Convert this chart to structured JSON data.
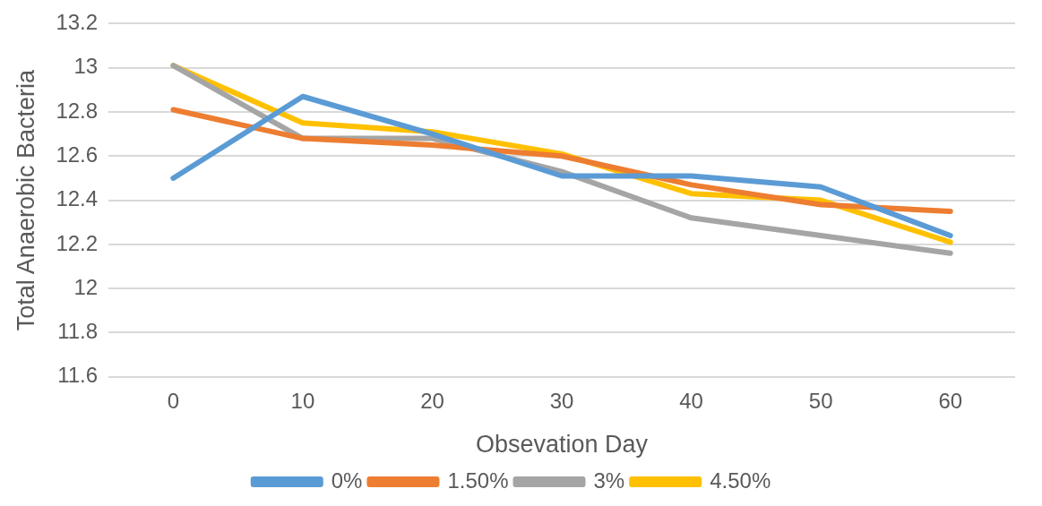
{
  "chart_data": {
    "type": "line",
    "xlabel": "Obsevation Day",
    "ylabel": "Total Anaerobic Bacteria",
    "categories": [
      "0",
      "10",
      "20",
      "30",
      "40",
      "50",
      "60"
    ],
    "series": [
      {
        "name": "0%",
        "color": "#5b9bd5",
        "values": [
          12.5,
          12.87,
          12.7,
          12.51,
          12.51,
          12.46,
          12.24
        ]
      },
      {
        "name": "1.50%",
        "color": "#ed7d31",
        "values": [
          12.81,
          12.68,
          12.65,
          12.6,
          12.47,
          12.38,
          12.35
        ]
      },
      {
        "name": "3%",
        "color": "#a5a5a5",
        "values": [
          13.01,
          12.68,
          12.68,
          12.53,
          12.32,
          12.24,
          12.16
        ]
      },
      {
        "name": "4.50%",
        "color": "#ffc000",
        "values": [
          13.01,
          12.75,
          12.71,
          12.61,
          12.43,
          12.4,
          12.21
        ]
      }
    ],
    "ylim": [
      11.6,
      13.2
    ],
    "yticks": [
      11.6,
      11.8,
      12,
      12.2,
      12.4,
      12.6,
      12.8,
      13,
      13.2
    ],
    "grid": "y",
    "legend": "bottom",
    "marker": "none",
    "line_style": "solid"
  }
}
